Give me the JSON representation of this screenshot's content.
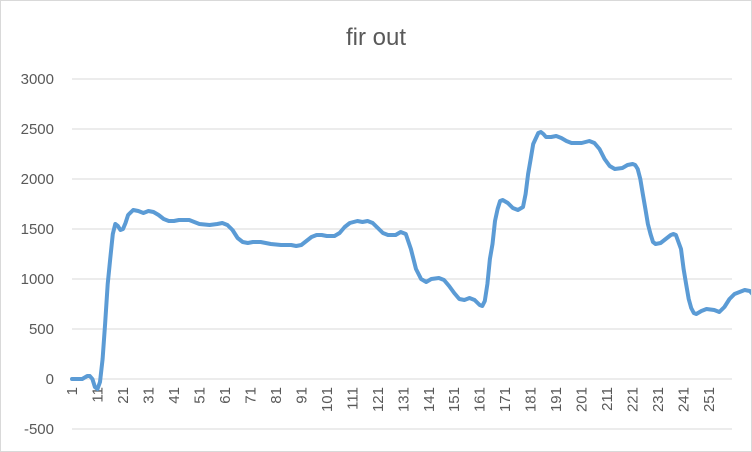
{
  "chart_data": {
    "type": "line",
    "title": "fir out",
    "xlabel": "",
    "ylabel": "",
    "ylim": [
      -500,
      3000
    ],
    "y_ticks": [
      -500,
      0,
      500,
      1000,
      1500,
      2000,
      2500,
      3000
    ],
    "x_range": [
      1,
      260
    ],
    "x_ticks": [
      1,
      11,
      21,
      31,
      41,
      51,
      61,
      71,
      81,
      91,
      101,
      111,
      121,
      131,
      141,
      151,
      161,
      171,
      181,
      191,
      201,
      211,
      221,
      231,
      241,
      251
    ],
    "grid": "horizontal",
    "legend": "none",
    "series": [
      {
        "color": "#5b9bd5",
        "points": [
          [
            1,
            0
          ],
          [
            3,
            0
          ],
          [
            5,
            0
          ],
          [
            7,
            30
          ],
          [
            8,
            30
          ],
          [
            9,
            0
          ],
          [
            10,
            -80
          ],
          [
            11,
            -100
          ],
          [
            12,
            -30
          ],
          [
            13,
            200
          ],
          [
            14,
            550
          ],
          [
            15,
            950
          ],
          [
            16,
            1200
          ],
          [
            17,
            1450
          ],
          [
            18,
            1550
          ],
          [
            19,
            1530
          ],
          [
            20,
            1490
          ],
          [
            21,
            1500
          ],
          [
            22,
            1560
          ],
          [
            23,
            1640
          ],
          [
            25,
            1690
          ],
          [
            27,
            1680
          ],
          [
            29,
            1660
          ],
          [
            31,
            1680
          ],
          [
            33,
            1670
          ],
          [
            35,
            1640
          ],
          [
            37,
            1600
          ],
          [
            39,
            1580
          ],
          [
            41,
            1580
          ],
          [
            43,
            1590
          ],
          [
            47,
            1590
          ],
          [
            49,
            1570
          ],
          [
            51,
            1550
          ],
          [
            55,
            1540
          ],
          [
            58,
            1550
          ],
          [
            60,
            1560
          ],
          [
            62,
            1540
          ],
          [
            64,
            1490
          ],
          [
            66,
            1410
          ],
          [
            68,
            1370
          ],
          [
            70,
            1360
          ],
          [
            72,
            1370
          ],
          [
            75,
            1370
          ],
          [
            79,
            1350
          ],
          [
            83,
            1340
          ],
          [
            87,
            1340
          ],
          [
            89,
            1330
          ],
          [
            91,
            1340
          ],
          [
            93,
            1380
          ],
          [
            95,
            1420
          ],
          [
            97,
            1440
          ],
          [
            99,
            1440
          ],
          [
            101,
            1430
          ],
          [
            104,
            1430
          ],
          [
            106,
            1460
          ],
          [
            108,
            1520
          ],
          [
            110,
            1560
          ],
          [
            113,
            1580
          ],
          [
            115,
            1570
          ],
          [
            117,
            1580
          ],
          [
            119,
            1560
          ],
          [
            121,
            1510
          ],
          [
            123,
            1460
          ],
          [
            125,
            1440
          ],
          [
            128,
            1440
          ],
          [
            130,
            1470
          ],
          [
            132,
            1450
          ],
          [
            134,
            1300
          ],
          [
            136,
            1100
          ],
          [
            138,
            1000
          ],
          [
            140,
            970
          ],
          [
            142,
            1000
          ],
          [
            145,
            1010
          ],
          [
            147,
            990
          ],
          [
            149,
            930
          ],
          [
            151,
            860
          ],
          [
            153,
            800
          ],
          [
            155,
            790
          ],
          [
            157,
            810
          ],
          [
            159,
            790
          ],
          [
            161,
            740
          ],
          [
            162,
            730
          ],
          [
            163,
            780
          ],
          [
            164,
            950
          ],
          [
            165,
            1200
          ],
          [
            166,
            1350
          ],
          [
            167,
            1580
          ],
          [
            168,
            1700
          ],
          [
            169,
            1780
          ],
          [
            170,
            1790
          ],
          [
            172,
            1760
          ],
          [
            174,
            1710
          ],
          [
            176,
            1690
          ],
          [
            178,
            1720
          ],
          [
            179,
            1850
          ],
          [
            180,
            2050
          ],
          [
            181,
            2200
          ],
          [
            182,
            2350
          ],
          [
            184,
            2460
          ],
          [
            185,
            2470
          ],
          [
            186,
            2450
          ],
          [
            187,
            2420
          ],
          [
            189,
            2420
          ],
          [
            191,
            2430
          ],
          [
            193,
            2410
          ],
          [
            195,
            2380
          ],
          [
            197,
            2360
          ],
          [
            201,
            2360
          ],
          [
            204,
            2380
          ],
          [
            206,
            2360
          ],
          [
            208,
            2300
          ],
          [
            210,
            2200
          ],
          [
            212,
            2130
          ],
          [
            214,
            2100
          ],
          [
            217,
            2110
          ],
          [
            219,
            2140
          ],
          [
            221,
            2150
          ],
          [
            222,
            2140
          ],
          [
            223,
            2100
          ],
          [
            224,
            2000
          ],
          [
            225,
            1850
          ],
          [
            226,
            1700
          ],
          [
            227,
            1550
          ],
          [
            228,
            1450
          ],
          [
            229,
            1370
          ],
          [
            230,
            1350
          ],
          [
            232,
            1360
          ],
          [
            234,
            1400
          ],
          [
            236,
            1440
          ],
          [
            237,
            1450
          ],
          [
            238,
            1440
          ],
          [
            240,
            1300
          ],
          [
            241,
            1100
          ],
          [
            242,
            950
          ],
          [
            243,
            800
          ],
          [
            244,
            710
          ],
          [
            245,
            660
          ],
          [
            246,
            650
          ],
          [
            248,
            680
          ],
          [
            250,
            700
          ],
          [
            253,
            690
          ],
          [
            255,
            670
          ],
          [
            257,
            720
          ],
          [
            259,
            800
          ],
          [
            261,
            850
          ],
          [
            263,
            870
          ],
          [
            265,
            890
          ],
          [
            267,
            880
          ],
          [
            268,
            850
          ],
          [
            269,
            810
          ]
        ]
      }
    ]
  }
}
